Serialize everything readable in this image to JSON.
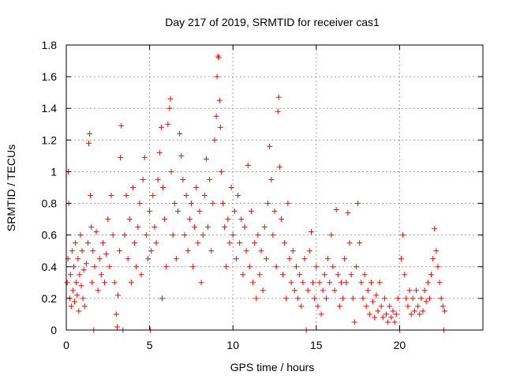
{
  "chart_data": {
    "type": "scatter",
    "title": "Day 217 of 2019, SRMTID for receiver cas1",
    "xlabel": "GPS time / hours",
    "ylabel": "SRMTID / TECUs",
    "xlim": [
      0,
      25
    ],
    "ylim": [
      0,
      1.8
    ],
    "xticks": [
      0,
      5,
      10,
      15,
      20
    ],
    "xtick_labels": [
      "0",
      "5",
      "10",
      "15",
      "20"
    ],
    "yticks": [
      0,
      0.2,
      0.4,
      0.6,
      0.8,
      1.0,
      1.2,
      1.4,
      1.6,
      1.8
    ],
    "ytick_labels": [
      "0",
      "0.2",
      "0.4",
      "0.6",
      "0.8",
      "1",
      "1.2",
      "1.4",
      "1.6",
      "1.8"
    ],
    "grid": true,
    "marker": "+",
    "marker_color": "#ff0000",
    "series": [
      {
        "name": "cas1",
        "points": [
          [
            0.05,
            0.3
          ],
          [
            0.1,
            0.45
          ],
          [
            0.12,
            1.0
          ],
          [
            0.15,
            0.8
          ],
          [
            0.2,
            0.2
          ],
          [
            0.25,
            0.35
          ],
          [
            0.3,
            0.15
          ],
          [
            0.35,
            0.5
          ],
          [
            0.4,
            0.25
          ],
          [
            0.45,
            0.4
          ],
          [
            0.5,
            0.18
          ],
          [
            0.55,
            0.55
          ],
          [
            0.6,
            0.3
          ],
          [
            0.65,
            0.22
          ],
          [
            0.7,
            0.45
          ],
          [
            0.75,
            0.12
          ],
          [
            0.8,
            0.35
          ],
          [
            0.85,
            0.6
          ],
          [
            0.9,
            0.28
          ],
          [
            0.95,
            0.5
          ],
          [
            1.0,
            0.2
          ],
          [
            1.05,
            0.38
          ],
          [
            1.1,
            0.15
          ],
          [
            1.2,
            0.42
          ],
          [
            1.3,
            0.55
          ],
          [
            1.35,
            1.18
          ],
          [
            1.4,
            1.24
          ],
          [
            1.45,
            0.85
          ],
          [
            1.5,
            0.65
          ],
          [
            1.55,
            0.3
          ],
          [
            1.6,
            0.5
          ],
          [
            1.65,
            0.0
          ],
          [
            1.7,
            0.4
          ],
          [
            1.8,
            0.62
          ],
          [
            1.9,
            0.25
          ],
          [
            2.0,
            0.45
          ],
          [
            2.1,
            0.35
          ],
          [
            2.2,
            0.55
          ],
          [
            2.3,
            0.3
          ],
          [
            2.4,
            0.48
          ],
          [
            2.5,
            0.7
          ],
          [
            2.6,
            0.4
          ],
          [
            2.7,
            0.85
          ],
          [
            2.8,
            0.6
          ],
          [
            2.9,
            0.3
          ],
          [
            3.0,
            0.1
          ],
          [
            3.05,
            0.02
          ],
          [
            3.1,
            0.22
          ],
          [
            3.2,
            0.5
          ],
          [
            3.25,
            1.09
          ],
          [
            3.3,
            1.29
          ],
          [
            3.4,
            0.0
          ],
          [
            3.5,
            0.6
          ],
          [
            3.6,
            0.85
          ],
          [
            3.7,
            0.45
          ],
          [
            3.8,
            0.7
          ],
          [
            3.9,
            0.3
          ],
          [
            4.0,
            0.9
          ],
          [
            4.1,
            0.55
          ],
          [
            4.2,
            0.4
          ],
          [
            4.3,
            0.65
          ],
          [
            4.4,
            0.8
          ],
          [
            4.5,
            0.35
          ],
          [
            4.6,
            0.95
          ],
          [
            4.7,
            1.09
          ],
          [
            4.8,
            0.6
          ],
          [
            4.9,
            0.45
          ],
          [
            5.0,
            0.75
          ],
          [
            5.05,
            0.0
          ],
          [
            5.1,
            0.5
          ],
          [
            5.2,
            0.85
          ],
          [
            5.3,
            0.65
          ],
          [
            5.4,
            0.55
          ],
          [
            5.5,
            0.95
          ],
          [
            5.6,
            1.12
          ],
          [
            5.7,
            1.28
          ],
          [
            5.75,
            0.2
          ],
          [
            5.8,
            0.9
          ],
          [
            5.9,
            0.7
          ],
          [
            6.0,
            0.4
          ],
          [
            6.1,
            1.3
          ],
          [
            6.2,
            1.4
          ],
          [
            6.25,
            1.46
          ],
          [
            6.3,
            1.0
          ],
          [
            6.4,
            0.6
          ],
          [
            6.5,
            0.8
          ],
          [
            6.6,
            0.45
          ],
          [
            6.7,
            0.75
          ],
          [
            6.8,
            1.24
          ],
          [
            6.9,
            1.1
          ],
          [
            7.0,
            0.95
          ],
          [
            7.1,
            0.6
          ],
          [
            7.2,
            0.85
          ],
          [
            7.3,
            0.5
          ],
          [
            7.4,
            0.7
          ],
          [
            7.5,
            0.8
          ],
          [
            7.6,
            0.4
          ],
          [
            7.7,
            0.65
          ],
          [
            7.8,
            0.9
          ],
          [
            7.9,
            0.55
          ],
          [
            8.0,
            0.75
          ],
          [
            8.1,
            0.3
          ],
          [
            8.2,
            0.6
          ],
          [
            8.3,
            0.85
          ],
          [
            8.4,
            1.08
          ],
          [
            8.5,
            0.65
          ],
          [
            8.6,
            0.95
          ],
          [
            8.7,
            0.5
          ],
          [
            8.8,
            0.8
          ],
          [
            8.9,
            1.2
          ],
          [
            9.0,
            1.35
          ],
          [
            9.05,
            1.6
          ],
          [
            9.1,
            1.73
          ],
          [
            9.15,
            1.72
          ],
          [
            9.2,
            1.45
          ],
          [
            9.25,
            1.28
          ],
          [
            9.3,
            1.0
          ],
          [
            9.4,
            0.8
          ],
          [
            9.5,
            0.65
          ],
          [
            9.6,
            0.4
          ],
          [
            9.7,
            0.7
          ],
          [
            9.8,
            0.55
          ],
          [
            9.9,
            0.9
          ],
          [
            10.0,
            0.6
          ],
          [
            10.1,
            0.75
          ],
          [
            10.2,
            0.45
          ],
          [
            10.3,
            0.85
          ],
          [
            10.4,
            0.55
          ],
          [
            10.5,
            0.7
          ],
          [
            10.6,
            0.35
          ],
          [
            10.7,
            0.65
          ],
          [
            10.8,
            0.5
          ],
          [
            10.9,
            1.04
          ],
          [
            11.0,
            0.4
          ],
          [
            11.1,
            0.75
          ],
          [
            11.2,
            0.3
          ],
          [
            11.3,
            0.55
          ],
          [
            11.4,
            0.2
          ],
          [
            11.5,
            0.6
          ],
          [
            11.6,
            0.35
          ],
          [
            11.7,
            0.5
          ],
          [
            11.8,
            0.25
          ],
          [
            11.9,
            0.65
          ],
          [
            12.0,
            0.45
          ],
          [
            12.1,
            0.8
          ],
          [
            12.2,
            1.16
          ],
          [
            12.3,
            0.95
          ],
          [
            12.4,
            0.6
          ],
          [
            12.5,
            0.75
          ],
          [
            12.6,
            0.4
          ],
          [
            12.7,
            1.38
          ],
          [
            12.75,
            1.47
          ],
          [
            12.8,
            1.03
          ],
          [
            12.9,
            0.7
          ],
          [
            13.0,
            0.35
          ],
          [
            13.1,
            0.55
          ],
          [
            13.2,
            0.2
          ],
          [
            13.3,
            0.8
          ],
          [
            13.4,
            0.45
          ],
          [
            13.5,
            0.3
          ],
          [
            13.6,
            0.5
          ],
          [
            13.7,
            0.25
          ],
          [
            13.8,
            0.4
          ],
          [
            13.9,
            0.2
          ],
          [
            14.0,
            0.35
          ],
          [
            14.1,
            0.15
          ],
          [
            14.2,
            0.3
          ],
          [
            14.3,
            0.45
          ],
          [
            14.4,
            0.0
          ],
          [
            14.5,
            0.25
          ],
          [
            14.6,
            0.5
          ],
          [
            14.7,
            0.62
          ],
          [
            14.8,
            0.3
          ],
          [
            14.9,
            0.2
          ],
          [
            15.0,
            0.4
          ],
          [
            15.1,
            0.15
          ],
          [
            15.2,
            0.3
          ],
          [
            15.3,
            0.1
          ],
          [
            15.4,
            0.25
          ],
          [
            15.5,
            0.35
          ],
          [
            15.6,
            0.2
          ],
          [
            15.7,
            0.45
          ],
          [
            15.8,
            0.3
          ],
          [
            15.9,
            0.6
          ],
          [
            16.0,
            0.4
          ],
          [
            16.1,
            0.25
          ],
          [
            16.2,
            0.76
          ],
          [
            16.3,
            0.35
          ],
          [
            16.4,
            0.15
          ],
          [
            16.5,
            0.3
          ],
          [
            16.6,
            0.2
          ],
          [
            16.7,
            0.45
          ],
          [
            16.8,
            0.3
          ],
          [
            16.9,
            0.74
          ],
          [
            17.0,
            0.55
          ],
          [
            17.1,
            0.35
          ],
          [
            17.2,
            0.2
          ],
          [
            17.3,
            0.05
          ],
          [
            17.4,
            0.4
          ],
          [
            17.5,
            0.8
          ],
          [
            17.6,
            0.55
          ],
          [
            17.7,
            0.3
          ],
          [
            17.8,
            0.2
          ],
          [
            17.9,
            0.35
          ],
          [
            18.0,
            0.15
          ],
          [
            18.1,
            0.25
          ],
          [
            18.2,
            0.1
          ],
          [
            18.3,
            0.3
          ],
          [
            18.4,
            0.18
          ],
          [
            18.5,
            0.08
          ],
          [
            18.6,
            0.22
          ],
          [
            18.7,
            0.12
          ],
          [
            18.8,
            0.3
          ],
          [
            18.9,
            0.15
          ],
          [
            19.0,
            0.08
          ],
          [
            19.1,
            0.2
          ],
          [
            19.2,
            0.1
          ],
          [
            19.3,
            0.05
          ],
          [
            19.4,
            0.15
          ],
          [
            19.5,
            0.08
          ],
          [
            19.6,
            0.12
          ],
          [
            19.7,
            0.05
          ],
          [
            19.8,
            0.1
          ],
          [
            19.9,
            0.2
          ],
          [
            20.0,
            0.0
          ],
          [
            20.1,
            0.45
          ],
          [
            20.2,
            0.6
          ],
          [
            20.3,
            0.35
          ],
          [
            20.4,
            0.2
          ],
          [
            20.5,
            0.15
          ],
          [
            20.6,
            0.25
          ],
          [
            20.7,
            0.1
          ],
          [
            20.8,
            0.2
          ],
          [
            20.9,
            0.12
          ],
          [
            21.0,
            0.25
          ],
          [
            21.1,
            0.15
          ],
          [
            21.2,
            0.1
          ],
          [
            21.3,
            0.2
          ],
          [
            21.4,
            0.12
          ],
          [
            21.5,
            0.25
          ],
          [
            21.6,
            0.18
          ],
          [
            21.7,
            0.3
          ],
          [
            21.8,
            0.2
          ],
          [
            21.9,
            0.35
          ],
          [
            22.0,
            0.45
          ],
          [
            22.1,
            0.64
          ],
          [
            22.2,
            0.5
          ],
          [
            22.3,
            0.4
          ],
          [
            22.4,
            0.3
          ],
          [
            22.5,
            0.2
          ],
          [
            22.6,
            0.15
          ],
          [
            22.65,
            0.0
          ],
          [
            22.7,
            0.12
          ]
        ]
      }
    ]
  }
}
